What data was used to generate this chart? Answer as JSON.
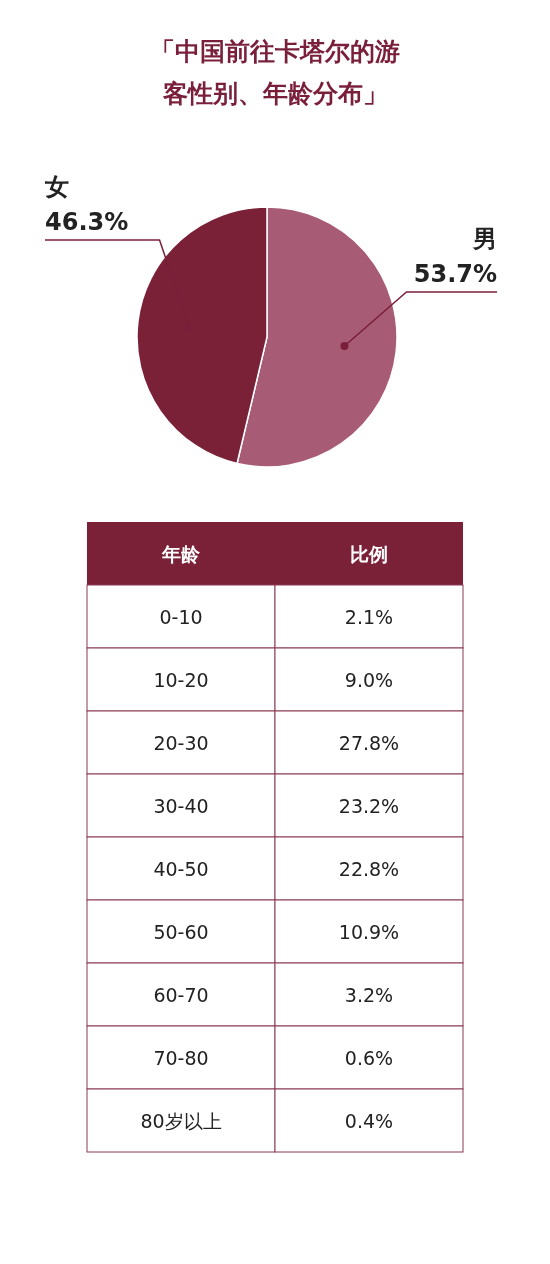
{
  "chart_data": [
    {
      "type": "pie",
      "title": "「中国前往卡塔尔的游客性别、年龄分布」",
      "categories": [
        "男",
        "女"
      ],
      "values": [
        53.7,
        46.3
      ],
      "colors": [
        "#a85b74",
        "#7a2138"
      ],
      "value_labels": [
        "53.7%",
        "46.3%"
      ]
    },
    {
      "type": "other",
      "xlabel": "年龄",
      "ylabel": "比例",
      "categories": [
        "0-10",
        "10-20",
        "20-30",
        "30-40",
        "40-50",
        "50-60",
        "60-70",
        "70-80",
        "80岁以上"
      ],
      "values": [
        2.1,
        9.0,
        27.8,
        23.2,
        22.8,
        10.9,
        3.2,
        0.6,
        0.4
      ],
      "value_labels": [
        "2.1%",
        "9.0%",
        "27.8%",
        "23.2%",
        "22.8%",
        "10.9%",
        "3.2%",
        "0.6%",
        "0.4%"
      ]
    }
  ]
}
